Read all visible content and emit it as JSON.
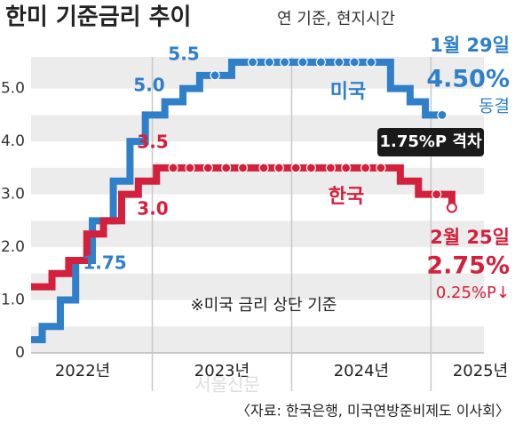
{
  "chart_data": {
    "type": "step",
    "title": "한미 기준금리 추이",
    "subtitle": "연 기준, 현지시간",
    "source": "〈자료: 한국은행, 미국연방준비제도 이사회〉",
    "watermark": "서울신문",
    "ylim": [
      0,
      5.6
    ],
    "yticks": [
      0,
      {
        "value": 1,
        "label": "1.0"
      },
      {
        "value": 2,
        "label": "2.0"
      },
      {
        "value": 3,
        "label": "3.0"
      },
      {
        "value": 4,
        "label": "4.0"
      },
      {
        "value": 5,
        "label": "5.0"
      }
    ],
    "xlim": [
      2022.13,
      2025.38
    ],
    "xticks": [
      {
        "value": 2022,
        "label": "2022년"
      },
      {
        "value": 2023,
        "label": "2023년"
      },
      {
        "value": 2024,
        "label": "2024년"
      },
      {
        "value": 2025,
        "label": "2025년"
      }
    ],
    "series": [
      {
        "name": "미국",
        "color": "#2f7fc9",
        "x": [
          2022.13,
          2022.21,
          2022.34,
          2022.45,
          2022.57,
          2022.72,
          2022.84,
          2022.95,
          2023.09,
          2023.22,
          2023.34,
          2023.45,
          2023.57,
          2023.72,
          2023.84,
          2023.95,
          2024.08,
          2024.21,
          2024.34,
          2024.45,
          2024.57,
          2024.71,
          2024.85,
          2024.96,
          2025.08
        ],
        "values": [
          0.25,
          0.5,
          1.0,
          1.75,
          2.5,
          3.25,
          4.0,
          4.5,
          4.75,
          5.0,
          5.25,
          5.25,
          5.5,
          5.5,
          5.5,
          5.5,
          5.5,
          5.5,
          5.5,
          5.5,
          5.5,
          5.0,
          4.75,
          4.5,
          4.5
        ]
      },
      {
        "name": "한국",
        "color": "#d3203c",
        "x": [
          2022.13,
          2022.28,
          2022.4,
          2022.53,
          2022.65,
          2022.78,
          2022.9,
          2023.03,
          2023.15,
          2023.27,
          2023.4,
          2023.53,
          2023.65,
          2023.8,
          2023.91,
          2024.03,
          2024.14,
          2024.28,
          2024.39,
          2024.53,
          2024.64,
          2024.78,
          2024.91,
          2025.04,
          2025.15
        ],
        "values": [
          1.25,
          1.5,
          1.75,
          2.25,
          2.5,
          3.0,
          3.25,
          3.5,
          3.5,
          3.5,
          3.5,
          3.5,
          3.5,
          3.5,
          3.5,
          3.5,
          3.5,
          3.5,
          3.5,
          3.5,
          3.5,
          3.25,
          3.0,
          3.0,
          2.75
        ]
      }
    ],
    "annotations": [
      "5.5",
      "5.0",
      "1.75",
      "3.5",
      "3.0",
      "※미국 금리 상단 기준",
      "1월 29일",
      "4.50%",
      "동결",
      "1.75%P 격차",
      "2월 25일",
      "2.75%",
      "0.25%P↓"
    ]
  }
}
